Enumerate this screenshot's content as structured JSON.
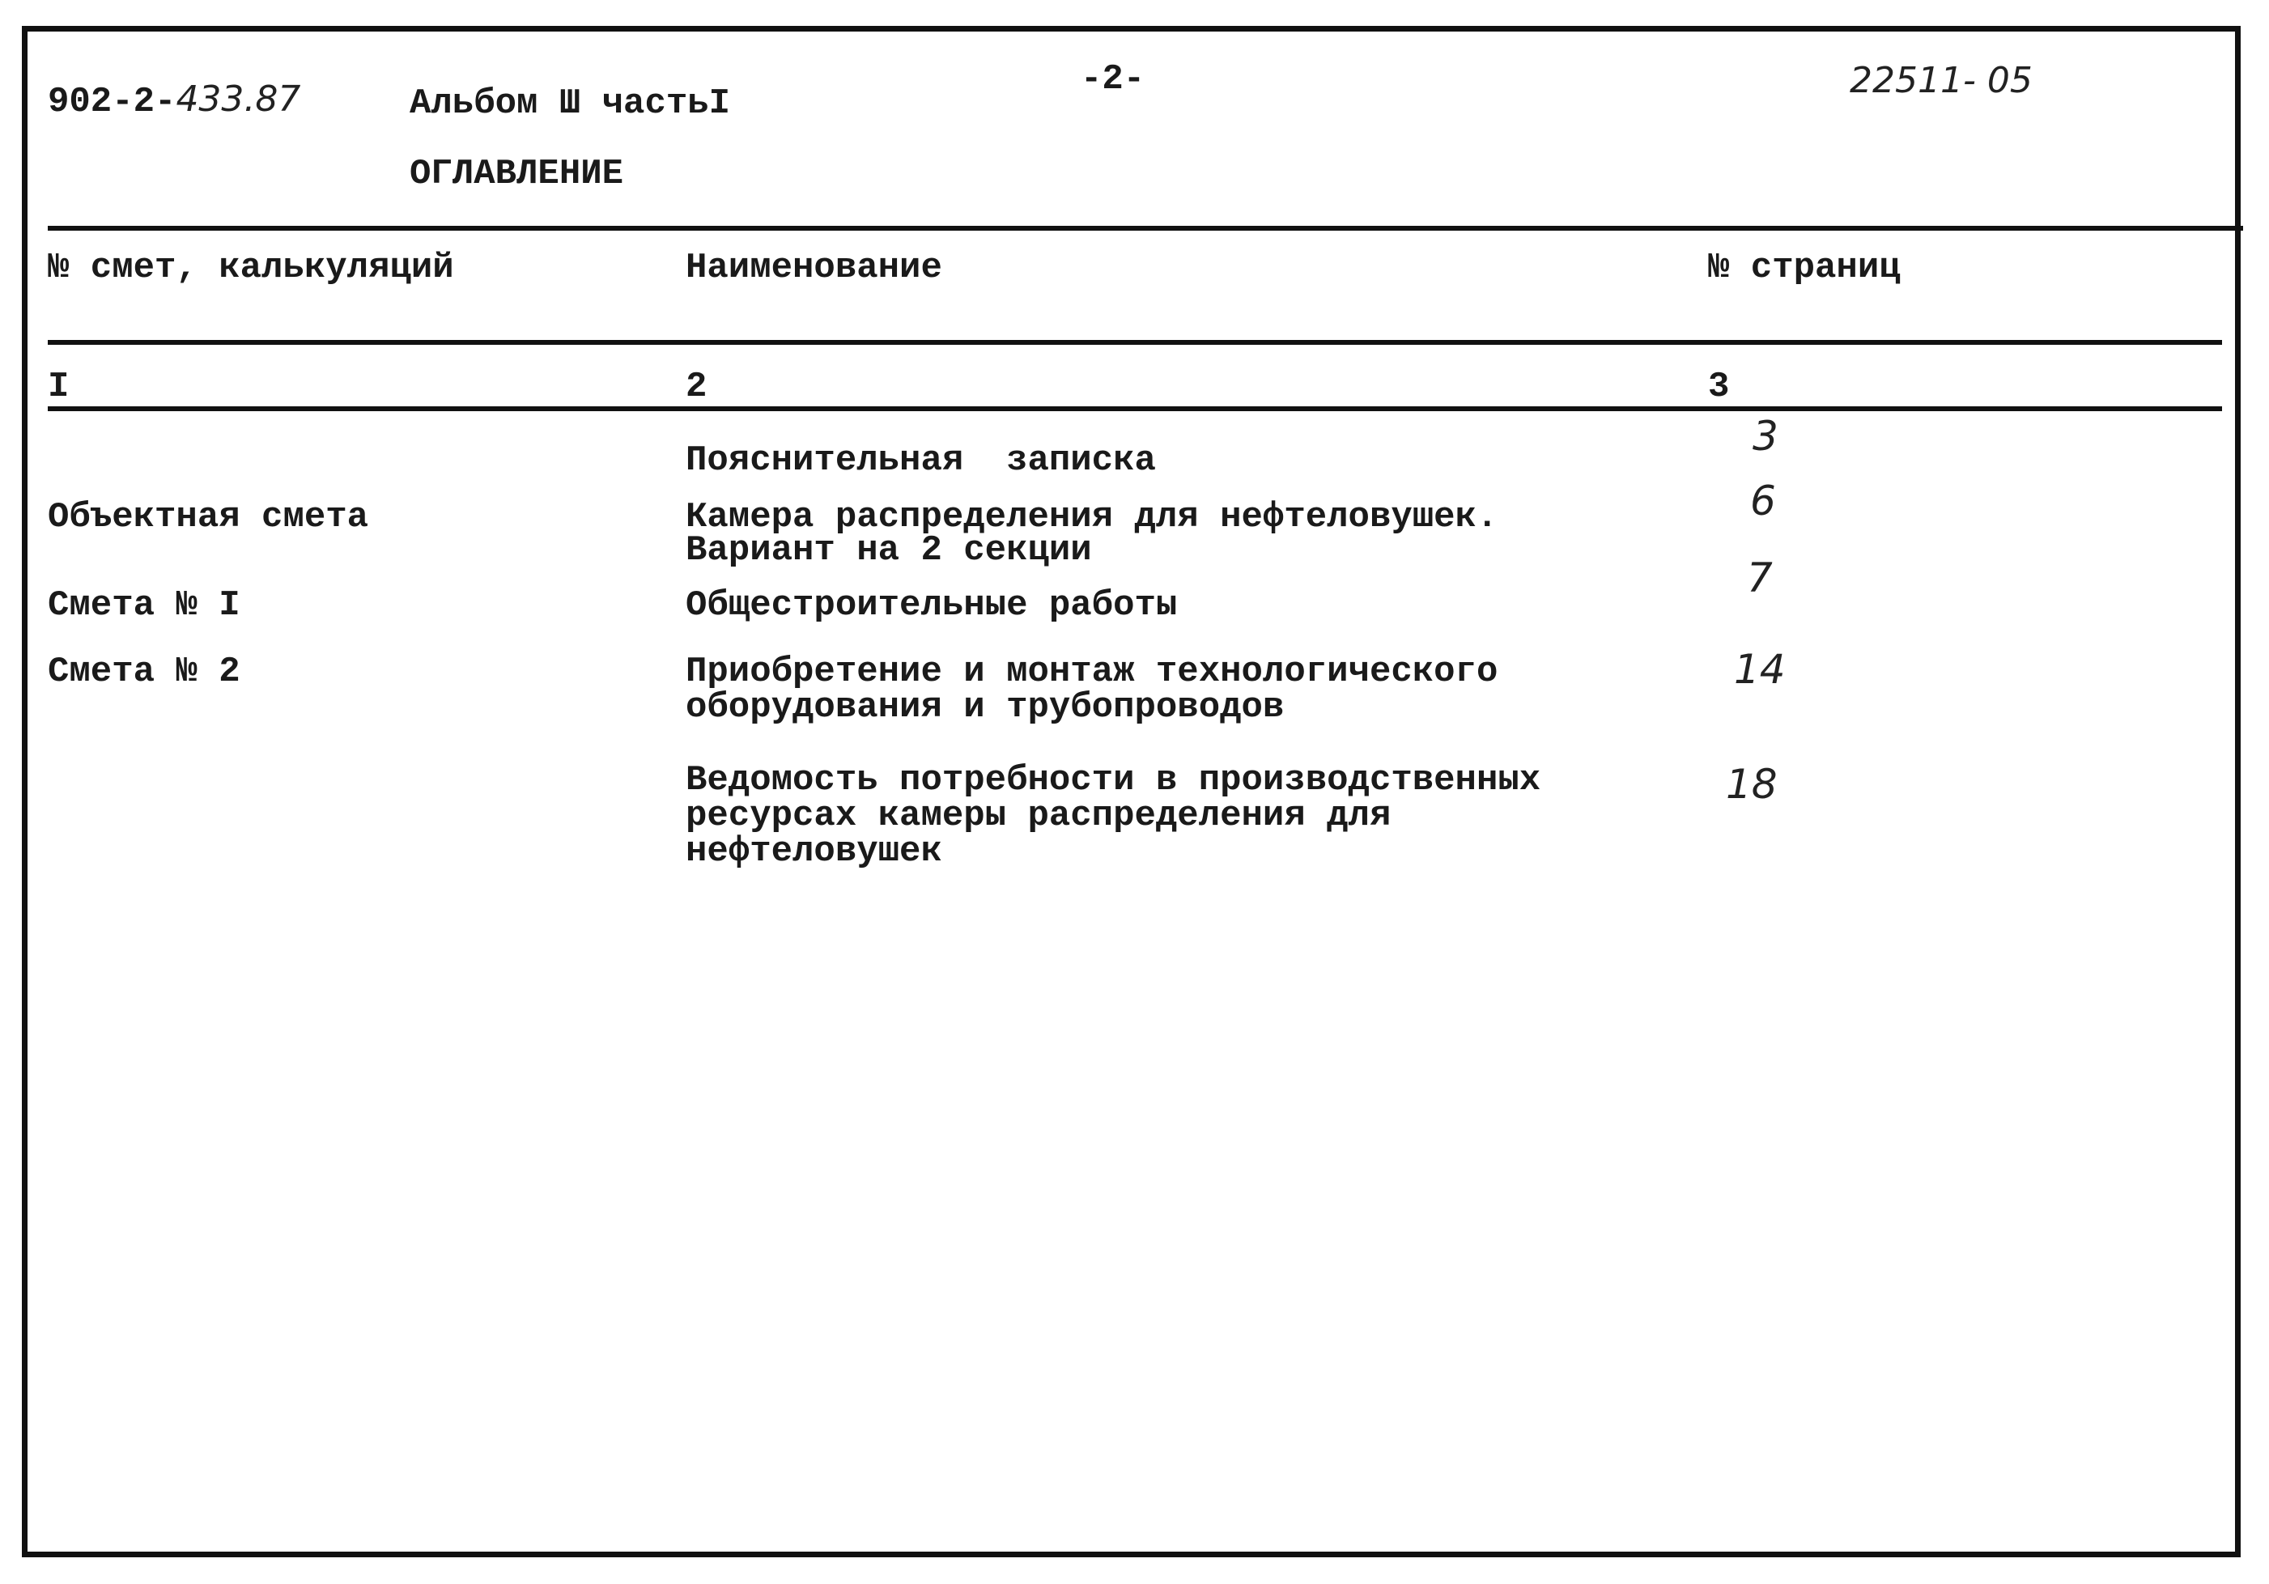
{
  "header": {
    "doc_code_printed": "902-2-",
    "doc_code_handwritten": "433.87",
    "album": "Альбом Ш частьI",
    "title": "ОГЛАВЛЕНИЕ",
    "page_number": "-2-",
    "archive_number": "22511- 05"
  },
  "table": {
    "columns": [
      "№ смет, калькуляций",
      "Наименование",
      "№ страниц"
    ],
    "column_numbers": [
      "I",
      "2",
      "3"
    ],
    "rows": [
      {
        "estimate": "",
        "name": [
          "Пояснительная  записка"
        ],
        "page": "3"
      },
      {
        "estimate": "Объектная смета",
        "name": [
          "Камера распределения для нефтеловушек.",
          "Вариант на 2 секции"
        ],
        "page": "6"
      },
      {
        "estimate": "Смета № I",
        "name": [
          "Общестроительные работы"
        ],
        "page": "7"
      },
      {
        "estimate": "Смета № 2",
        "name": [
          "Приобретение и монтаж технологического",
          "оборудования и трубопроводов"
        ],
        "page": "14"
      },
      {
        "estimate": "",
        "name": [
          "Ведомость потребности в производственных",
          "ресурсах камеры распределения для",
          "нефтеловушек"
        ],
        "page": "18"
      }
    ]
  }
}
